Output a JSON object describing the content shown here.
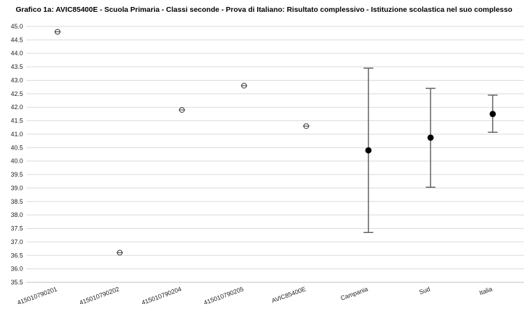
{
  "chart_data": {
    "type": "scatter",
    "title": "Grafico 1a: AVIC85400E - Scuola Primaria - Classi seconde - Prova di Italiano: Risultato complessivo - Istituzione scolastica nel suo complesso",
    "xlabel": "",
    "ylabel": "",
    "ylim": [
      35.5,
      45.0
    ],
    "ytick_step": 0.5,
    "grid": true,
    "categories": [
      "415010790201",
      "415010790202",
      "415010790204",
      "415010790205",
      "AVIC85400E",
      "Campania",
      "Sud",
      "Italia"
    ],
    "points": [
      {
        "category": "415010790201",
        "value": 44.8,
        "low": 44.8,
        "high": 44.8,
        "marker": "hollow"
      },
      {
        "category": "415010790202",
        "value": 36.6,
        "low": 36.6,
        "high": 36.6,
        "marker": "hollow"
      },
      {
        "category": "415010790204",
        "value": 41.9,
        "low": 41.9,
        "high": 41.9,
        "marker": "hollow"
      },
      {
        "category": "415010790205",
        "value": 42.8,
        "low": 42.8,
        "high": 42.8,
        "marker": "hollow"
      },
      {
        "category": "AVIC85400E",
        "value": 41.3,
        "low": 41.3,
        "high": 41.3,
        "marker": "hollow"
      },
      {
        "category": "Campania",
        "value": 40.4,
        "low": 37.35,
        "high": 43.45,
        "marker": "filled"
      },
      {
        "category": "Sud",
        "value": 40.87,
        "low": 39.03,
        "high": 42.7,
        "marker": "filled"
      },
      {
        "category": "Italia",
        "value": 41.75,
        "low": 41.07,
        "high": 42.45,
        "marker": "filled"
      }
    ],
    "colors": {
      "grid": "#d9d9d9",
      "axis": "#bfbfbf",
      "error_bar": "#555555",
      "marker_fill": "#000000",
      "marker_hollow_fill": "#ffffff"
    }
  }
}
